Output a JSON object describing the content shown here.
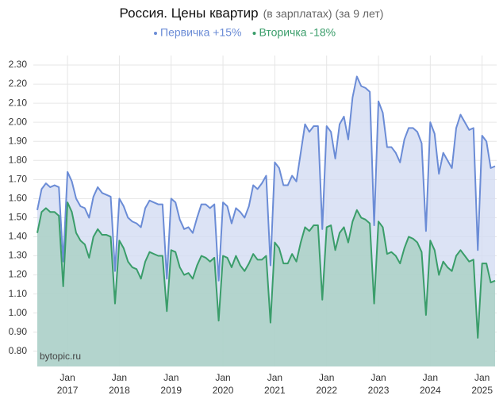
{
  "chart_data": {
    "type": "area",
    "title": "Россия. Цены квартир",
    "subtitle": "(в зарплатах) (за 9 лет)",
    "watermark": "bytopic.ru",
    "categories": [
      null,
      null,
      null,
      null,
      null,
      null,
      null,
      "Jan 2017",
      null,
      null,
      null,
      null,
      null,
      null,
      null,
      null,
      null,
      null,
      null,
      "Jan 2018",
      null,
      null,
      null,
      null,
      null,
      null,
      null,
      null,
      null,
      null,
      null,
      "Jan 2019",
      null,
      null,
      null,
      null,
      null,
      null,
      null,
      null,
      null,
      null,
      null,
      "Jan 2020",
      null,
      null,
      null,
      null,
      null,
      null,
      null,
      null,
      null,
      null,
      null,
      "Jan 2021",
      null,
      null,
      null,
      null,
      null,
      null,
      null,
      null,
      null,
      null,
      null,
      "Jan 2022",
      null,
      null,
      null,
      null,
      null,
      null,
      null,
      null,
      null,
      null,
      null,
      "Jan 2023",
      null,
      null,
      null,
      null,
      null,
      null,
      null,
      null,
      null,
      null,
      null,
      "Jan 2024",
      null,
      null,
      null,
      null,
      null,
      null,
      null,
      null,
      null,
      null,
      null,
      "Jan 2025",
      null,
      null,
      null
    ],
    "series": [
      {
        "name": "Первичка +15%",
        "color": "#6b8cd6",
        "fill": "#d3dcf3",
        "values": [
          1.54,
          1.65,
          1.68,
          1.66,
          1.67,
          1.66,
          1.27,
          1.74,
          1.69,
          1.6,
          1.56,
          1.55,
          1.5,
          1.61,
          1.66,
          1.63,
          1.62,
          1.61,
          1.22,
          1.6,
          1.56,
          1.5,
          1.48,
          1.47,
          1.45,
          1.55,
          1.59,
          1.58,
          1.57,
          1.57,
          1.18,
          1.6,
          1.58,
          1.49,
          1.44,
          1.45,
          1.42,
          1.5,
          1.57,
          1.57,
          1.55,
          1.57,
          1.17,
          1.58,
          1.56,
          1.47,
          1.55,
          1.53,
          1.5,
          1.56,
          1.67,
          1.65,
          1.68,
          1.72,
          1.25,
          1.79,
          1.76,
          1.67,
          1.67,
          1.72,
          1.69,
          1.84,
          1.99,
          1.95,
          1.98,
          1.98,
          1.44,
          1.98,
          1.95,
          1.81,
          1.99,
          2.03,
          1.91,
          2.13,
          2.24,
          2.19,
          2.18,
          2.16,
          1.46,
          2.11,
          2.05,
          1.87,
          1.87,
          1.84,
          1.79,
          1.91,
          1.97,
          1.97,
          1.95,
          1.89,
          1.43,
          2.0,
          1.94,
          1.73,
          1.84,
          1.8,
          1.76,
          1.97,
          2.04,
          2.0,
          1.96,
          1.97,
          1.33,
          1.93,
          1.9,
          1.76,
          1.77
        ]
      },
      {
        "name": "Вторичка -18%",
        "color": "#3a9d6a",
        "fill": "#a9cfc3",
        "values": [
          1.42,
          1.53,
          1.55,
          1.53,
          1.53,
          1.51,
          1.14,
          1.58,
          1.53,
          1.42,
          1.38,
          1.36,
          1.29,
          1.4,
          1.44,
          1.41,
          1.41,
          1.4,
          1.05,
          1.38,
          1.34,
          1.27,
          1.24,
          1.23,
          1.18,
          1.27,
          1.32,
          1.31,
          1.3,
          1.3,
          1.01,
          1.33,
          1.32,
          1.24,
          1.2,
          1.21,
          1.18,
          1.25,
          1.3,
          1.29,
          1.27,
          1.29,
          0.96,
          1.3,
          1.29,
          1.24,
          1.3,
          1.25,
          1.22,
          1.26,
          1.31,
          1.28,
          1.28,
          1.3,
          0.95,
          1.37,
          1.34,
          1.26,
          1.26,
          1.31,
          1.27,
          1.37,
          1.45,
          1.43,
          1.46,
          1.46,
          1.07,
          1.45,
          1.46,
          1.33,
          1.42,
          1.45,
          1.37,
          1.48,
          1.54,
          1.5,
          1.49,
          1.47,
          1.05,
          1.48,
          1.45,
          1.31,
          1.32,
          1.3,
          1.26,
          1.34,
          1.4,
          1.39,
          1.37,
          1.32,
          0.99,
          1.38,
          1.33,
          1.2,
          1.27,
          1.24,
          1.22,
          1.3,
          1.33,
          1.3,
          1.27,
          1.28,
          0.87,
          1.26,
          1.26,
          1.16,
          1.17
        ]
      }
    ],
    "ylim": [
      0.72,
      2.35
    ],
    "yticks": [
      {
        "value": 0.8,
        "label": "0.80"
      },
      {
        "value": 0.9,
        "label": "0.90"
      },
      {
        "value": 1,
        "label": "1.00"
      },
      {
        "value": 1.1,
        "label": "1.10"
      },
      {
        "value": 1.2,
        "label": "1.20"
      },
      {
        "value": 1.3,
        "label": "1.30"
      },
      {
        "value": 1.4,
        "label": "1.40"
      },
      {
        "value": 1.5,
        "label": "1.50"
      },
      {
        "value": 1.6,
        "label": "1.60"
      },
      {
        "value": 1.7,
        "label": "1.70"
      },
      {
        "value": 1.8,
        "label": "1.80"
      },
      {
        "value": 1.9,
        "label": "1.90"
      },
      {
        "value": 2,
        "label": "2.00"
      },
      {
        "value": 2.1,
        "label": "2.10"
      },
      {
        "value": 2.2,
        "label": "2.20"
      },
      {
        "value": 2.3,
        "label": "2.30"
      }
    ],
    "grid": true
  }
}
